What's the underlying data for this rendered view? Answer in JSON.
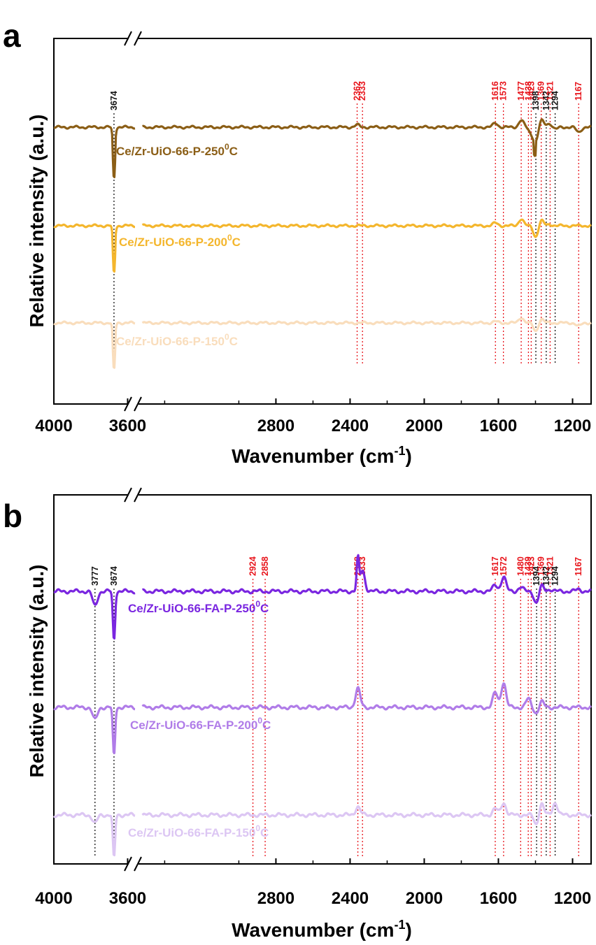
{
  "chart_data": [
    {
      "type": "line",
      "panel_label": "a",
      "xlabel": "Wavenumber (cm",
      "xlabel_sup": "-1",
      "xlabel_tail": ")",
      "ylabel": "Relative intensity (a.u.)",
      "x_ticks_left": [
        4000,
        3600
      ],
      "x_ticks_right": [
        2800,
        2400,
        2000,
        1600,
        1200
      ],
      "axis_break": {
        "left_range": [
          4000,
          3560
        ],
        "right_range": [
          3560,
          1100
        ]
      },
      "grid": false,
      "series": [
        {
          "name": "Ce/Zr-UiO-66-P-250",
          "name_sup": "0",
          "name_tail": "C",
          "color": "#8B5E16",
          "features": [
            [
              3674,
              -0.95
            ],
            [
              2362,
              0.08
            ],
            [
              1616,
              0.15
            ],
            [
              1477,
              0.25
            ],
            [
              1423,
              -0.2
            ],
            [
              1398,
              -0.5
            ],
            [
              1369,
              0.25
            ],
            [
              1342,
              0.05
            ],
            [
              1321,
              0.12
            ],
            [
              1294,
              -0.08
            ],
            [
              1167,
              -0.18
            ]
          ]
        },
        {
          "name": "Ce/Zr-UiO-66-P-200",
          "name_sup": "0",
          "name_tail": "C",
          "color": "#F4B62D",
          "features": [
            [
              3674,
              -0.9
            ],
            [
              1616,
              0.1
            ],
            [
              1477,
              0.25
            ],
            [
              1423,
              0.0
            ],
            [
              1398,
              -0.4
            ],
            [
              1369,
              0.2
            ],
            [
              1342,
              0.0
            ],
            [
              1321,
              0.05
            ]
          ]
        },
        {
          "name": "Ce/Zr-UiO-66-P-150",
          "name_sup": "0",
          "name_tail": "C",
          "color": "#F9DDBC",
          "features": [
            [
              3674,
              -0.9
            ],
            [
              1616,
              0.05
            ],
            [
              1477,
              0.2
            ],
            [
              1398,
              -0.3
            ],
            [
              1369,
              0.15
            ],
            [
              1167,
              -0.12
            ]
          ]
        }
      ],
      "annotations": [
        {
          "label": "3674",
          "x": 3674,
          "color": "black"
        },
        {
          "label": "2362",
          "x": 2362,
          "color": "red"
        },
        {
          "label": "2333",
          "x": 2333,
          "color": "red"
        },
        {
          "label": "1616",
          "x": 1616,
          "color": "red"
        },
        {
          "label": "1573",
          "x": 1573,
          "color": "red"
        },
        {
          "label": "1477",
          "x": 1477,
          "color": "red"
        },
        {
          "label": "1438",
          "x": 1438,
          "color": "red"
        },
        {
          "label": "1423",
          "x": 1423,
          "color": "red"
        },
        {
          "label": "1398",
          "x": 1398,
          "color": "black"
        },
        {
          "label": "1369",
          "x": 1369,
          "color": "red"
        },
        {
          "label": "1342",
          "x": 1342,
          "color": "black"
        },
        {
          "label": "1321",
          "x": 1321,
          "color": "red"
        },
        {
          "label": "1294",
          "x": 1294,
          "color": "black"
        },
        {
          "label": "1167",
          "x": 1167,
          "color": "red"
        }
      ]
    },
    {
      "type": "line",
      "panel_label": "b",
      "xlabel": "Wavenumber (cm",
      "xlabel_sup": "-1",
      "xlabel_tail": ")",
      "ylabel": "Relative intensity (a.u.)",
      "x_ticks_left": [
        4000,
        3600
      ],
      "x_ticks_right": [
        2800,
        2400,
        2000,
        1600,
        1200
      ],
      "axis_break": {
        "left_range": [
          4000,
          3560
        ],
        "right_range": [
          3560,
          1100
        ]
      },
      "grid": false,
      "series": [
        {
          "name": "Ce/Zr-UiO-66-FA-P-250",
          "name_sup": "0",
          "name_tail": "C",
          "color": "#7A26E0",
          "features": [
            [
              3777,
              -0.35
            ],
            [
              3674,
              -1.0
            ],
            [
              2358,
              0.75
            ],
            [
              2333,
              0.5
            ],
            [
              1617,
              0.15
            ],
            [
              1572,
              0.35
            ],
            [
              1480,
              0.1
            ],
            [
              1394,
              -0.3
            ],
            [
              1369,
              0.15
            ],
            [
              1321,
              0.05
            ],
            [
              1167,
              0.05
            ]
          ]
        },
        {
          "name": "Ce/Zr-UiO-66-FA-P-200",
          "name_sup": "0",
          "name_tail": "C",
          "color": "#B07CE8",
          "features": [
            [
              3777,
              -0.3
            ],
            [
              3674,
              -1.0
            ],
            [
              2358,
              0.45
            ],
            [
              1617,
              0.35
            ],
            [
              1572,
              0.6
            ],
            [
              1439,
              0.2
            ],
            [
              1394,
              -0.15
            ],
            [
              1369,
              0.15
            ]
          ]
        },
        {
          "name": "Ce/Zr-UiO-66-FA-P-150",
          "name_sup": "0",
          "name_tail": "C",
          "color": "#DCC6F3",
          "features": [
            [
              3777,
              -0.2
            ],
            [
              3674,
              -0.9
            ],
            [
              2358,
              0.2
            ],
            [
              1617,
              0.15
            ],
            [
              1572,
              0.3
            ],
            [
              1394,
              -0.25
            ],
            [
              1369,
              0.3
            ],
            [
              1294,
              0.3
            ]
          ]
        }
      ],
      "annotations": [
        {
          "label": "3777",
          "x": 3777,
          "color": "black"
        },
        {
          "label": "3674",
          "x": 3674,
          "color": "black"
        },
        {
          "label": "2924",
          "x": 2924,
          "color": "red"
        },
        {
          "label": "2858",
          "x": 2858,
          "color": "red"
        },
        {
          "label": "2358",
          "x": 2358,
          "color": "red"
        },
        {
          "label": "2333",
          "x": 2333,
          "color": "red"
        },
        {
          "label": "1617",
          "x": 1617,
          "color": "red"
        },
        {
          "label": "1572",
          "x": 1572,
          "color": "red"
        },
        {
          "label": "1480",
          "x": 1480,
          "color": "red"
        },
        {
          "label": "1439",
          "x": 1439,
          "color": "red"
        },
        {
          "label": "1423",
          "x": 1423,
          "color": "red"
        },
        {
          "label": "1394",
          "x": 1394,
          "color": "black"
        },
        {
          "label": "1369",
          "x": 1369,
          "color": "red"
        },
        {
          "label": "1342",
          "x": 1342,
          "color": "black"
        },
        {
          "label": "1321",
          "x": 1321,
          "color": "red"
        },
        {
          "label": "1294",
          "x": 1294,
          "color": "black"
        },
        {
          "label": "1167",
          "x": 1167,
          "color": "red"
        }
      ]
    }
  ]
}
